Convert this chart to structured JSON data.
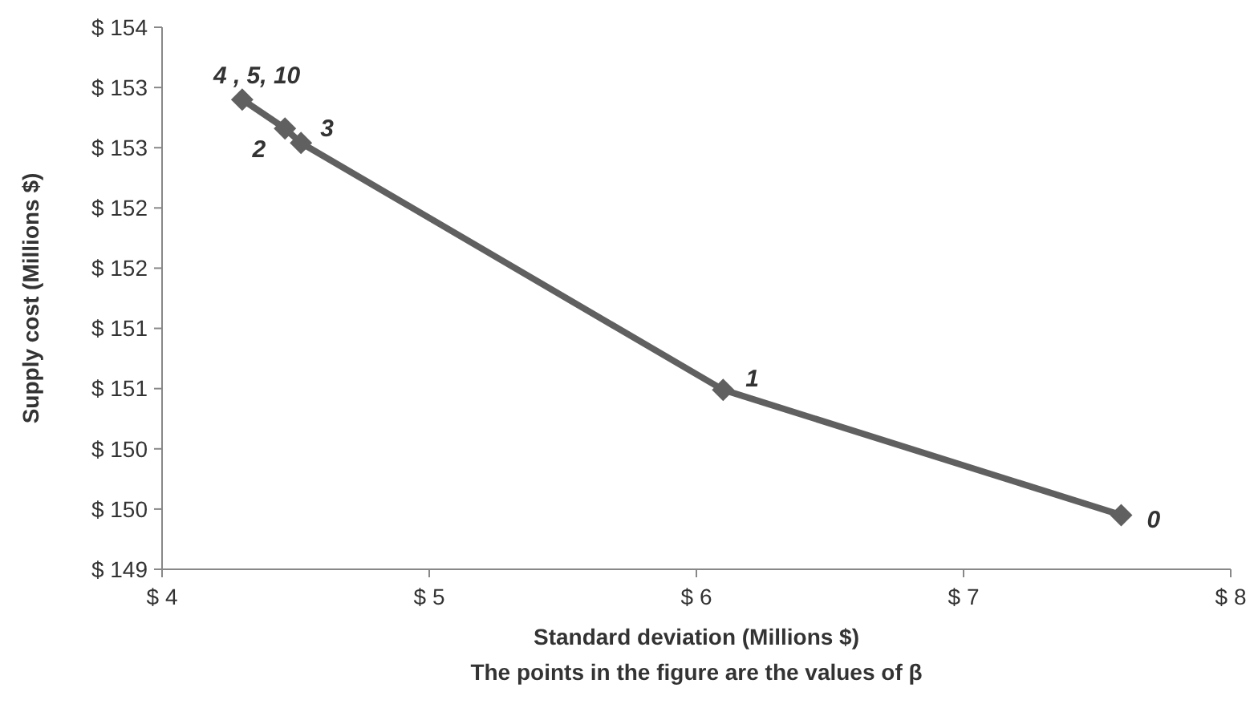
{
  "chart_data": {
    "type": "line",
    "xlabel": "Standard deviation (Millions $)",
    "ylabel": "Supply cost (Millions $)",
    "x": [
      4.3,
      4.46,
      4.52,
      6.1,
      7.59
    ],
    "series": [
      {
        "color": "#606060",
        "values": [
          152.9,
          152.66,
          152.54,
          150.49,
          149.45
        ]
      }
    ],
    "xlim": [
      4,
      8
    ],
    "xticks": [
      {
        "value": 4,
        "label": "$ 4"
      },
      {
        "value": 5,
        "label": "$ 5"
      },
      {
        "value": 6,
        "label": "$ 6"
      },
      {
        "value": 7,
        "label": "$ 7"
      },
      {
        "value": 8,
        "label": "$ 8"
      }
    ],
    "ylim": [
      149,
      153.5
    ],
    "yticks": [
      {
        "value": 149,
        "label": "$ 149"
      },
      {
        "value": 149.5,
        "label": "$ 150"
      },
      {
        "value": 150,
        "label": "$ 150"
      },
      {
        "value": 150.5,
        "label": "$ 151"
      },
      {
        "value": 151,
        "label": "$ 151"
      },
      {
        "value": 151.5,
        "label": "$ 152"
      },
      {
        "value": 152,
        "label": "$ 152"
      },
      {
        "value": 152.5,
        "label": "$ 153"
      },
      {
        "value": 153,
        "label": "$ 153"
      },
      {
        "value": 153.5,
        "label": "$ 154"
      }
    ],
    "grid": false,
    "marker": "diamond",
    "line_style": "solid",
    "annotations": [
      {
        "text": "4 , 5, 10",
        "x": 4.3,
        "y": 152.9
      },
      {
        "text": "2",
        "x": 4.46,
        "y": 152.66
      },
      {
        "text": "3",
        "x": 4.52,
        "y": 152.54
      },
      {
        "text": "1",
        "x": 6.1,
        "y": 150.49
      },
      {
        "text": "0",
        "x": 7.59,
        "y": 149.45
      },
      "The points in the figure are the values of β"
    ]
  }
}
